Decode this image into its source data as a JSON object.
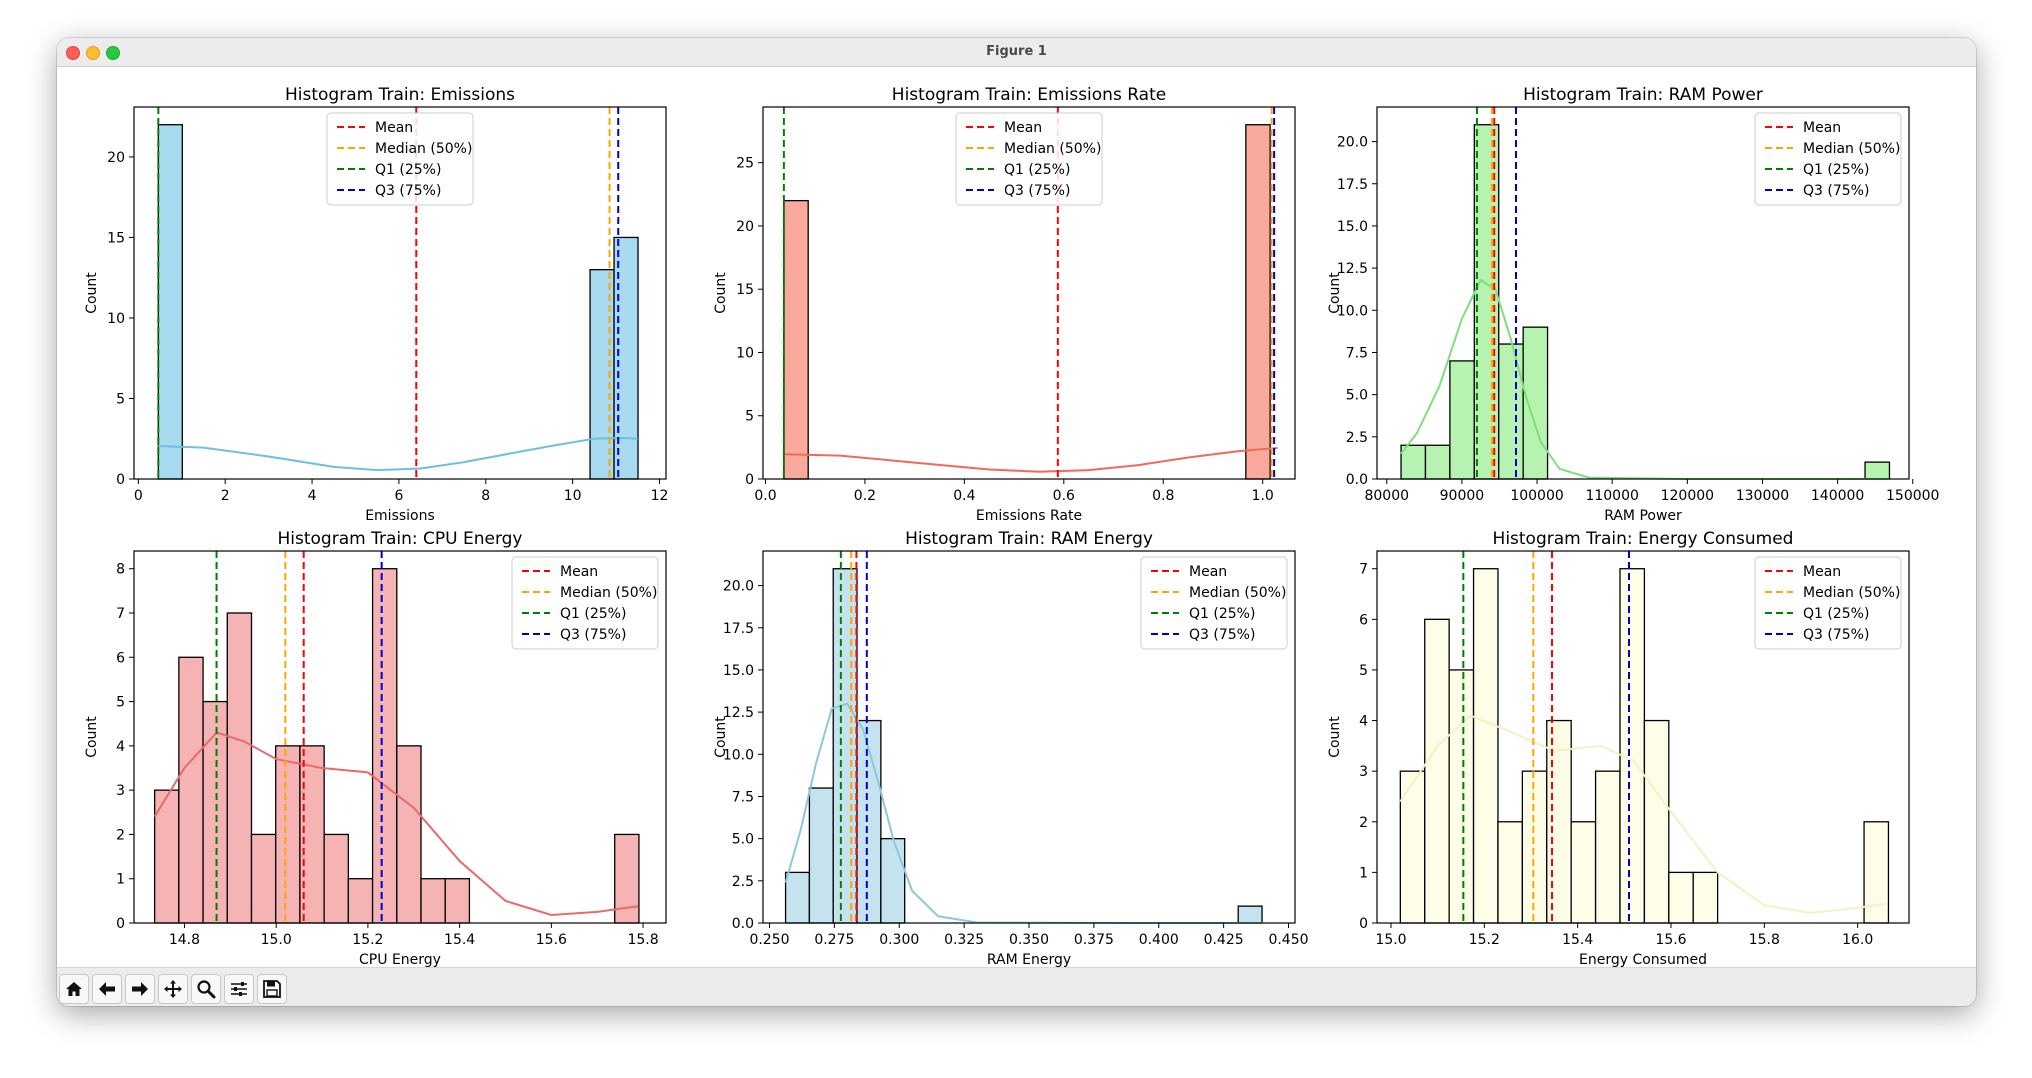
{
  "window": {
    "title": "Figure 1"
  },
  "toolbar": {
    "buttons": [
      {
        "name": "home-icon"
      },
      {
        "name": "back-arrow-icon"
      },
      {
        "name": "forward-arrow-icon"
      },
      {
        "name": "pan-icon"
      },
      {
        "name": "zoom-icon"
      },
      {
        "name": "configure-subplots-icon"
      },
      {
        "name": "save-icon"
      }
    ]
  },
  "legend_labels": {
    "mean": "Mean",
    "median": "Median (50%)",
    "q1": "Q1 (25%)",
    "q3": "Q3 (75%)"
  },
  "colors": {
    "mean": "#ff0000",
    "median": "#ffa500",
    "q1": "#008000",
    "q3": "#0000cd"
  },
  "chart_data": [
    {
      "type": "bar",
      "title": "Histogram Train: Emissions",
      "xlabel": "Emissions",
      "ylabel": "Count",
      "xlim": [
        -0.1,
        12.15
      ],
      "ylim": [
        0,
        23.1
      ],
      "xticks": [
        0,
        2,
        4,
        6,
        8,
        10,
        12
      ],
      "xtick_labels": [
        "0",
        "2",
        "4",
        "6",
        "8",
        "10",
        "12"
      ],
      "yticks": [
        0,
        5,
        10,
        15,
        20
      ],
      "ytick_labels": [
        "0",
        "5",
        "10",
        "15",
        "20"
      ],
      "bins": {
        "start": 0.46,
        "width": 0.5523,
        "counts": [
          22,
          0,
          0,
          0,
          0,
          0,
          0,
          0,
          0,
          0,
          0,
          0,
          0,
          0,
          0,
          0,
          0,
          0,
          13,
          15
        ]
      },
      "fill": "#a9dbf0",
      "kde_color": "#6bbfe0",
      "kde": [
        [
          0.46,
          2.05
        ],
        [
          1.5,
          1.95
        ],
        [
          3,
          1.4
        ],
        [
          4.5,
          0.75
        ],
        [
          5.5,
          0.55
        ],
        [
          6.5,
          0.65
        ],
        [
          7.5,
          1.05
        ],
        [
          8.5,
          1.55
        ],
        [
          9.5,
          2.05
        ],
        [
          10.5,
          2.5
        ],
        [
          11.1,
          2.55
        ],
        [
          11.5,
          2.5
        ]
      ],
      "lines": {
        "mean": 6.4,
        "median": 10.85,
        "q1": 0.46,
        "q3": 11.05
      },
      "legend": "upper center"
    },
    {
      "type": "bar",
      "title": "Histogram Train: Emissions Rate",
      "xlabel": "Emissions Rate",
      "ylabel": "Count",
      "xlim": [
        -0.005,
        1.065
      ],
      "ylim": [
        0,
        29.4
      ],
      "xticks": [
        0,
        0.2,
        0.4,
        0.6,
        0.8,
        1.0
      ],
      "xtick_labels": [
        "0.0",
        "0.2",
        "0.4",
        "0.6",
        "0.8",
        "1.0"
      ],
      "yticks": [
        0,
        5,
        10,
        15,
        20,
        25
      ],
      "ytick_labels": [
        "0",
        "5",
        "10",
        "15",
        "20",
        "25"
      ],
      "bins": {
        "start": 0.037,
        "width": 0.0489,
        "counts": [
          22,
          0,
          0,
          0,
          0,
          0,
          0,
          0,
          0,
          0,
          0,
          0,
          0,
          0,
          0,
          0,
          0,
          0,
          0,
          28
        ]
      },
      "fill": "#f9aa9c",
      "kde_color": "#ee6a5a",
      "kde": [
        [
          0.037,
          1.95
        ],
        [
          0.15,
          1.85
        ],
        [
          0.3,
          1.3
        ],
        [
          0.45,
          0.75
        ],
        [
          0.55,
          0.58
        ],
        [
          0.65,
          0.7
        ],
        [
          0.75,
          1.1
        ],
        [
          0.85,
          1.7
        ],
        [
          0.95,
          2.2
        ],
        [
          1.03,
          2.45
        ]
      ],
      "lines": {
        "mean": 0.588,
        "median": 1.018,
        "q1": 0.037,
        "q3": 1.023
      },
      "legend": "upper center"
    },
    {
      "type": "bar",
      "title": "Histogram Train: RAM Power",
      "xlabel": "RAM Power",
      "ylabel": "Count",
      "xlim": [
        78700,
        149500
      ],
      "xticks": [
        80000,
        90000,
        100000,
        110000,
        120000,
        130000,
        140000,
        150000
      ],
      "xtick_labels": [
        "80000",
        "90000",
        "100000",
        "110000",
        "120000",
        "130000",
        "140000",
        "150000"
      ],
      "ylim": [
        0,
        22.05
      ],
      "yticks": [
        0,
        2.5,
        5,
        7.5,
        10,
        12.5,
        15,
        17.5,
        20
      ],
      "ytick_labels": [
        "0.0",
        "2.5",
        "5.0",
        "7.5",
        "10.0",
        "12.5",
        "15.0",
        "17.5",
        "20.0"
      ],
      "bins": {
        "start": 81900,
        "width": 3250,
        "counts": [
          2,
          2,
          7,
          21,
          8,
          9,
          0,
          0,
          0,
          0,
          0,
          0,
          0,
          0,
          0,
          0,
          0,
          0,
          0,
          1
        ]
      },
      "fill": "#b6f2b0",
      "kde_color": "#7ee07a",
      "kde": [
        [
          81900,
          1.5
        ],
        [
          84000,
          2.7
        ],
        [
          87000,
          5.5
        ],
        [
          90000,
          9.5
        ],
        [
          92500,
          11.8
        ],
        [
          94500,
          11.2
        ],
        [
          96500,
          8.3
        ],
        [
          98500,
          4.9
        ],
        [
          100500,
          2.2
        ],
        [
          103000,
          0.6
        ],
        [
          107000,
          0.08
        ],
        [
          120000,
          0.0
        ],
        [
          146900,
          0.0
        ]
      ],
      "lines": {
        "mean": 94300,
        "median": 94000,
        "q1": 92000,
        "q3": 97200
      },
      "legend": "upper right"
    },
    {
      "type": "bar",
      "title": "Histogram Train: CPU Energy",
      "xlabel": "CPU Energy",
      "ylabel": "Count",
      "xlim": [
        14.69,
        15.85
      ],
      "xticks": [
        14.8,
        15.0,
        15.2,
        15.4,
        15.6,
        15.8
      ],
      "xtick_labels": [
        "14.8",
        "15.0",
        "15.2",
        "15.4",
        "15.6",
        "15.8"
      ],
      "ylim": [
        0,
        8.4
      ],
      "yticks": [
        0,
        1,
        2,
        3,
        4,
        5,
        6,
        7,
        8
      ],
      "ytick_labels": [
        "0",
        "1",
        "2",
        "3",
        "4",
        "5",
        "6",
        "7",
        "8"
      ],
      "bins": {
        "start": 14.735,
        "width": 0.0528,
        "counts": [
          3,
          6,
          5,
          7,
          2,
          4,
          4,
          2,
          1,
          8,
          4,
          1,
          1,
          0,
          0,
          0,
          0,
          0,
          0,
          2
        ]
      },
      "fill": "#f5b3b3",
      "kde_color": "#e86a6a",
      "kde": [
        [
          14.735,
          2.4
        ],
        [
          14.8,
          3.5
        ],
        [
          14.87,
          4.3
        ],
        [
          14.93,
          4.1
        ],
        [
          15.0,
          3.7
        ],
        [
          15.1,
          3.5
        ],
        [
          15.2,
          3.4
        ],
        [
          15.3,
          2.6
        ],
        [
          15.4,
          1.4
        ],
        [
          15.5,
          0.5
        ],
        [
          15.6,
          0.18
        ],
        [
          15.7,
          0.25
        ],
        [
          15.79,
          0.38
        ]
      ],
      "lines": {
        "mean": 15.06,
        "median": 15.02,
        "q1": 14.87,
        "q3": 15.23
      },
      "legend": "upper right"
    },
    {
      "type": "bar",
      "title": "Histogram Train: RAM Energy",
      "xlabel": "RAM Energy",
      "ylabel": "Count",
      "xlim": [
        0.2475,
        0.4525
      ],
      "xticks": [
        0.25,
        0.275,
        0.3,
        0.325,
        0.35,
        0.375,
        0.4,
        0.425,
        0.45
      ],
      "xtick_labels": [
        "0.250",
        "0.275",
        "0.300",
        "0.325",
        "0.350",
        "0.375",
        "0.400",
        "0.425",
        "0.450"
      ],
      "ylim": [
        0,
        22.05
      ],
      "yticks": [
        0,
        2.5,
        5,
        7.5,
        10,
        12.5,
        15,
        17.5,
        20
      ],
      "ytick_labels": [
        "0.0",
        "2.5",
        "5.0",
        "7.5",
        "10.0",
        "12.5",
        "15.0",
        "17.5",
        "20.0"
      ],
      "bins": {
        "start": 0.2562,
        "width": 0.00918,
        "counts": [
          3,
          8,
          21,
          12,
          5,
          0,
          0,
          0,
          0,
          0,
          0,
          0,
          0,
          0,
          0,
          0,
          0,
          0,
          0,
          1
        ]
      },
      "fill": "#c4e3ee",
      "kde_color": "#8cc8dc",
      "kde": [
        [
          0.2562,
          2.4
        ],
        [
          0.262,
          5.5
        ],
        [
          0.268,
          9.5
        ],
        [
          0.274,
          12.7
        ],
        [
          0.28,
          13.0
        ],
        [
          0.286,
          11.5
        ],
        [
          0.292,
          8.3
        ],
        [
          0.298,
          4.8
        ],
        [
          0.305,
          1.9
        ],
        [
          0.315,
          0.4
        ],
        [
          0.33,
          0.03
        ],
        [
          0.4,
          0.0
        ],
        [
          0.44,
          0.0
        ]
      ],
      "lines": {
        "mean": 0.2835,
        "median": 0.2815,
        "q1": 0.2775,
        "q3": 0.2875
      },
      "legend": "upper right"
    },
    {
      "type": "bar",
      "title": "Histogram Train: Energy Consumed",
      "xlabel": "Energy Consumed",
      "ylabel": "Count",
      "xlim": [
        14.97,
        16.11
      ],
      "xticks": [
        15.0,
        15.2,
        15.4,
        15.6,
        15.8,
        16.0
      ],
      "xtick_labels": [
        "15.0",
        "15.2",
        "15.4",
        "15.6",
        "15.8",
        "16.0"
      ],
      "ylim": [
        0,
        7.35
      ],
      "yticks": [
        0,
        1,
        2,
        3,
        4,
        5,
        6,
        7
      ],
      "ytick_labels": [
        "0",
        "1",
        "2",
        "3",
        "4",
        "5",
        "6",
        "7"
      ],
      "bins": {
        "start": 15.02,
        "width": 0.0523,
        "counts": [
          3,
          6,
          5,
          7,
          2,
          3,
          4,
          2,
          3,
          7,
          4,
          1,
          1,
          0,
          0,
          0,
          0,
          0,
          0,
          2
        ]
      },
      "fill": "#fdfde8",
      "kde_color": "#f2f2c4",
      "kde": [
        [
          15.02,
          2.4
        ],
        [
          15.1,
          3.5
        ],
        [
          15.17,
          4.1
        ],
        [
          15.25,
          3.8
        ],
        [
          15.35,
          3.4
        ],
        [
          15.45,
          3.5
        ],
        [
          15.52,
          3.2
        ],
        [
          15.6,
          2.2
        ],
        [
          15.7,
          1.0
        ],
        [
          15.8,
          0.35
        ],
        [
          15.9,
          0.2
        ],
        [
          16.0,
          0.3
        ],
        [
          16.06,
          0.38
        ]
      ],
      "lines": {
        "mean": 15.345,
        "median": 15.305,
        "q1": 15.155,
        "q3": 15.51
      },
      "legend": "upper right"
    }
  ]
}
